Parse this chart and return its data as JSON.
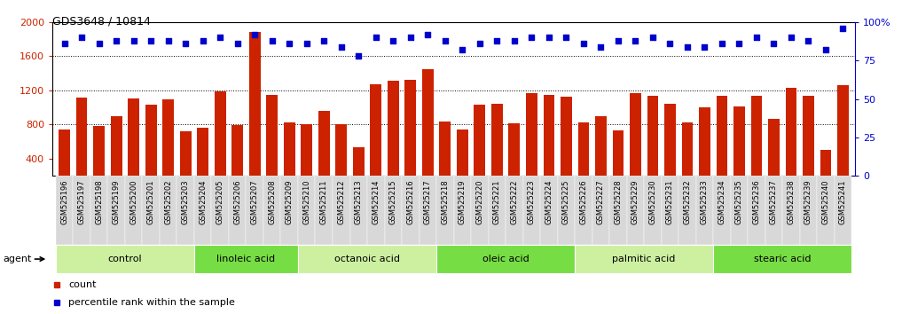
{
  "title": "GDS3648 / 10814",
  "samples": [
    "GSM525196",
    "GSM525197",
    "GSM525198",
    "GSM525199",
    "GSM525200",
    "GSM525201",
    "GSM525202",
    "GSM525203",
    "GSM525204",
    "GSM525205",
    "GSM525206",
    "GSM525207",
    "GSM525208",
    "GSM525209",
    "GSM525210",
    "GSM525211",
    "GSM525212",
    "GSM525213",
    "GSM525214",
    "GSM525215",
    "GSM525216",
    "GSM525217",
    "GSM525218",
    "GSM525219",
    "GSM525220",
    "GSM525221",
    "GSM525222",
    "GSM525223",
    "GSM525224",
    "GSM525225",
    "GSM525226",
    "GSM525227",
    "GSM525228",
    "GSM525229",
    "GSM525230",
    "GSM525231",
    "GSM525232",
    "GSM525233",
    "GSM525234",
    "GSM525235",
    "GSM525236",
    "GSM525237",
    "GSM525238",
    "GSM525239",
    "GSM525240",
    "GSM525241"
  ],
  "counts": [
    740,
    1120,
    780,
    900,
    1110,
    1030,
    1100,
    720,
    760,
    1190,
    790,
    1880,
    1150,
    820,
    800,
    960,
    800,
    530,
    1270,
    1310,
    1320,
    1450,
    840,
    740,
    1030,
    1040,
    810,
    1170,
    1150,
    1130,
    820,
    900,
    730,
    1170,
    1140,
    1040,
    830,
    1000,
    1140,
    1010,
    1140,
    870,
    1230,
    1140,
    500,
    1260
  ],
  "percentiles": [
    86,
    90,
    86,
    88,
    88,
    88,
    88,
    86,
    88,
    90,
    86,
    92,
    88,
    86,
    86,
    88,
    84,
    78,
    90,
    88,
    90,
    92,
    88,
    82,
    86,
    88,
    88,
    90,
    90,
    90,
    86,
    84,
    88,
    88,
    90,
    86,
    84,
    84,
    86,
    86,
    90,
    86,
    90,
    88,
    82,
    96
  ],
  "groups": [
    {
      "label": "control",
      "start": 0,
      "end": 7,
      "color": "#ccf0a0"
    },
    {
      "label": "linoleic acid",
      "start": 8,
      "end": 13,
      "color": "#ccf0a0"
    },
    {
      "label": "octanoic acid",
      "start": 14,
      "end": 21,
      "color": "#88dd55"
    },
    {
      "label": "oleic acid",
      "start": 22,
      "end": 29,
      "color": "#ccf0a0"
    },
    {
      "label": "palmitic acid",
      "start": 30,
      "end": 37,
      "color": "#88dd55"
    },
    {
      "label": "stearic acid",
      "start": 38,
      "end": 45,
      "color": "#ccf0a0"
    }
  ],
  "bar_color": "#cc2200",
  "dot_color": "#0000cc",
  "ylim_left": [
    200,
    2000
  ],
  "ylim_right": [
    0,
    100
  ],
  "yticks_left": [
    400,
    800,
    1200,
    1600,
    2000
  ],
  "yticks_right": [
    0,
    25,
    50,
    75,
    100
  ],
  "bg_color": "#ffffff",
  "alt_group_colors": [
    "#ccf0a0",
    "#77dd44"
  ]
}
